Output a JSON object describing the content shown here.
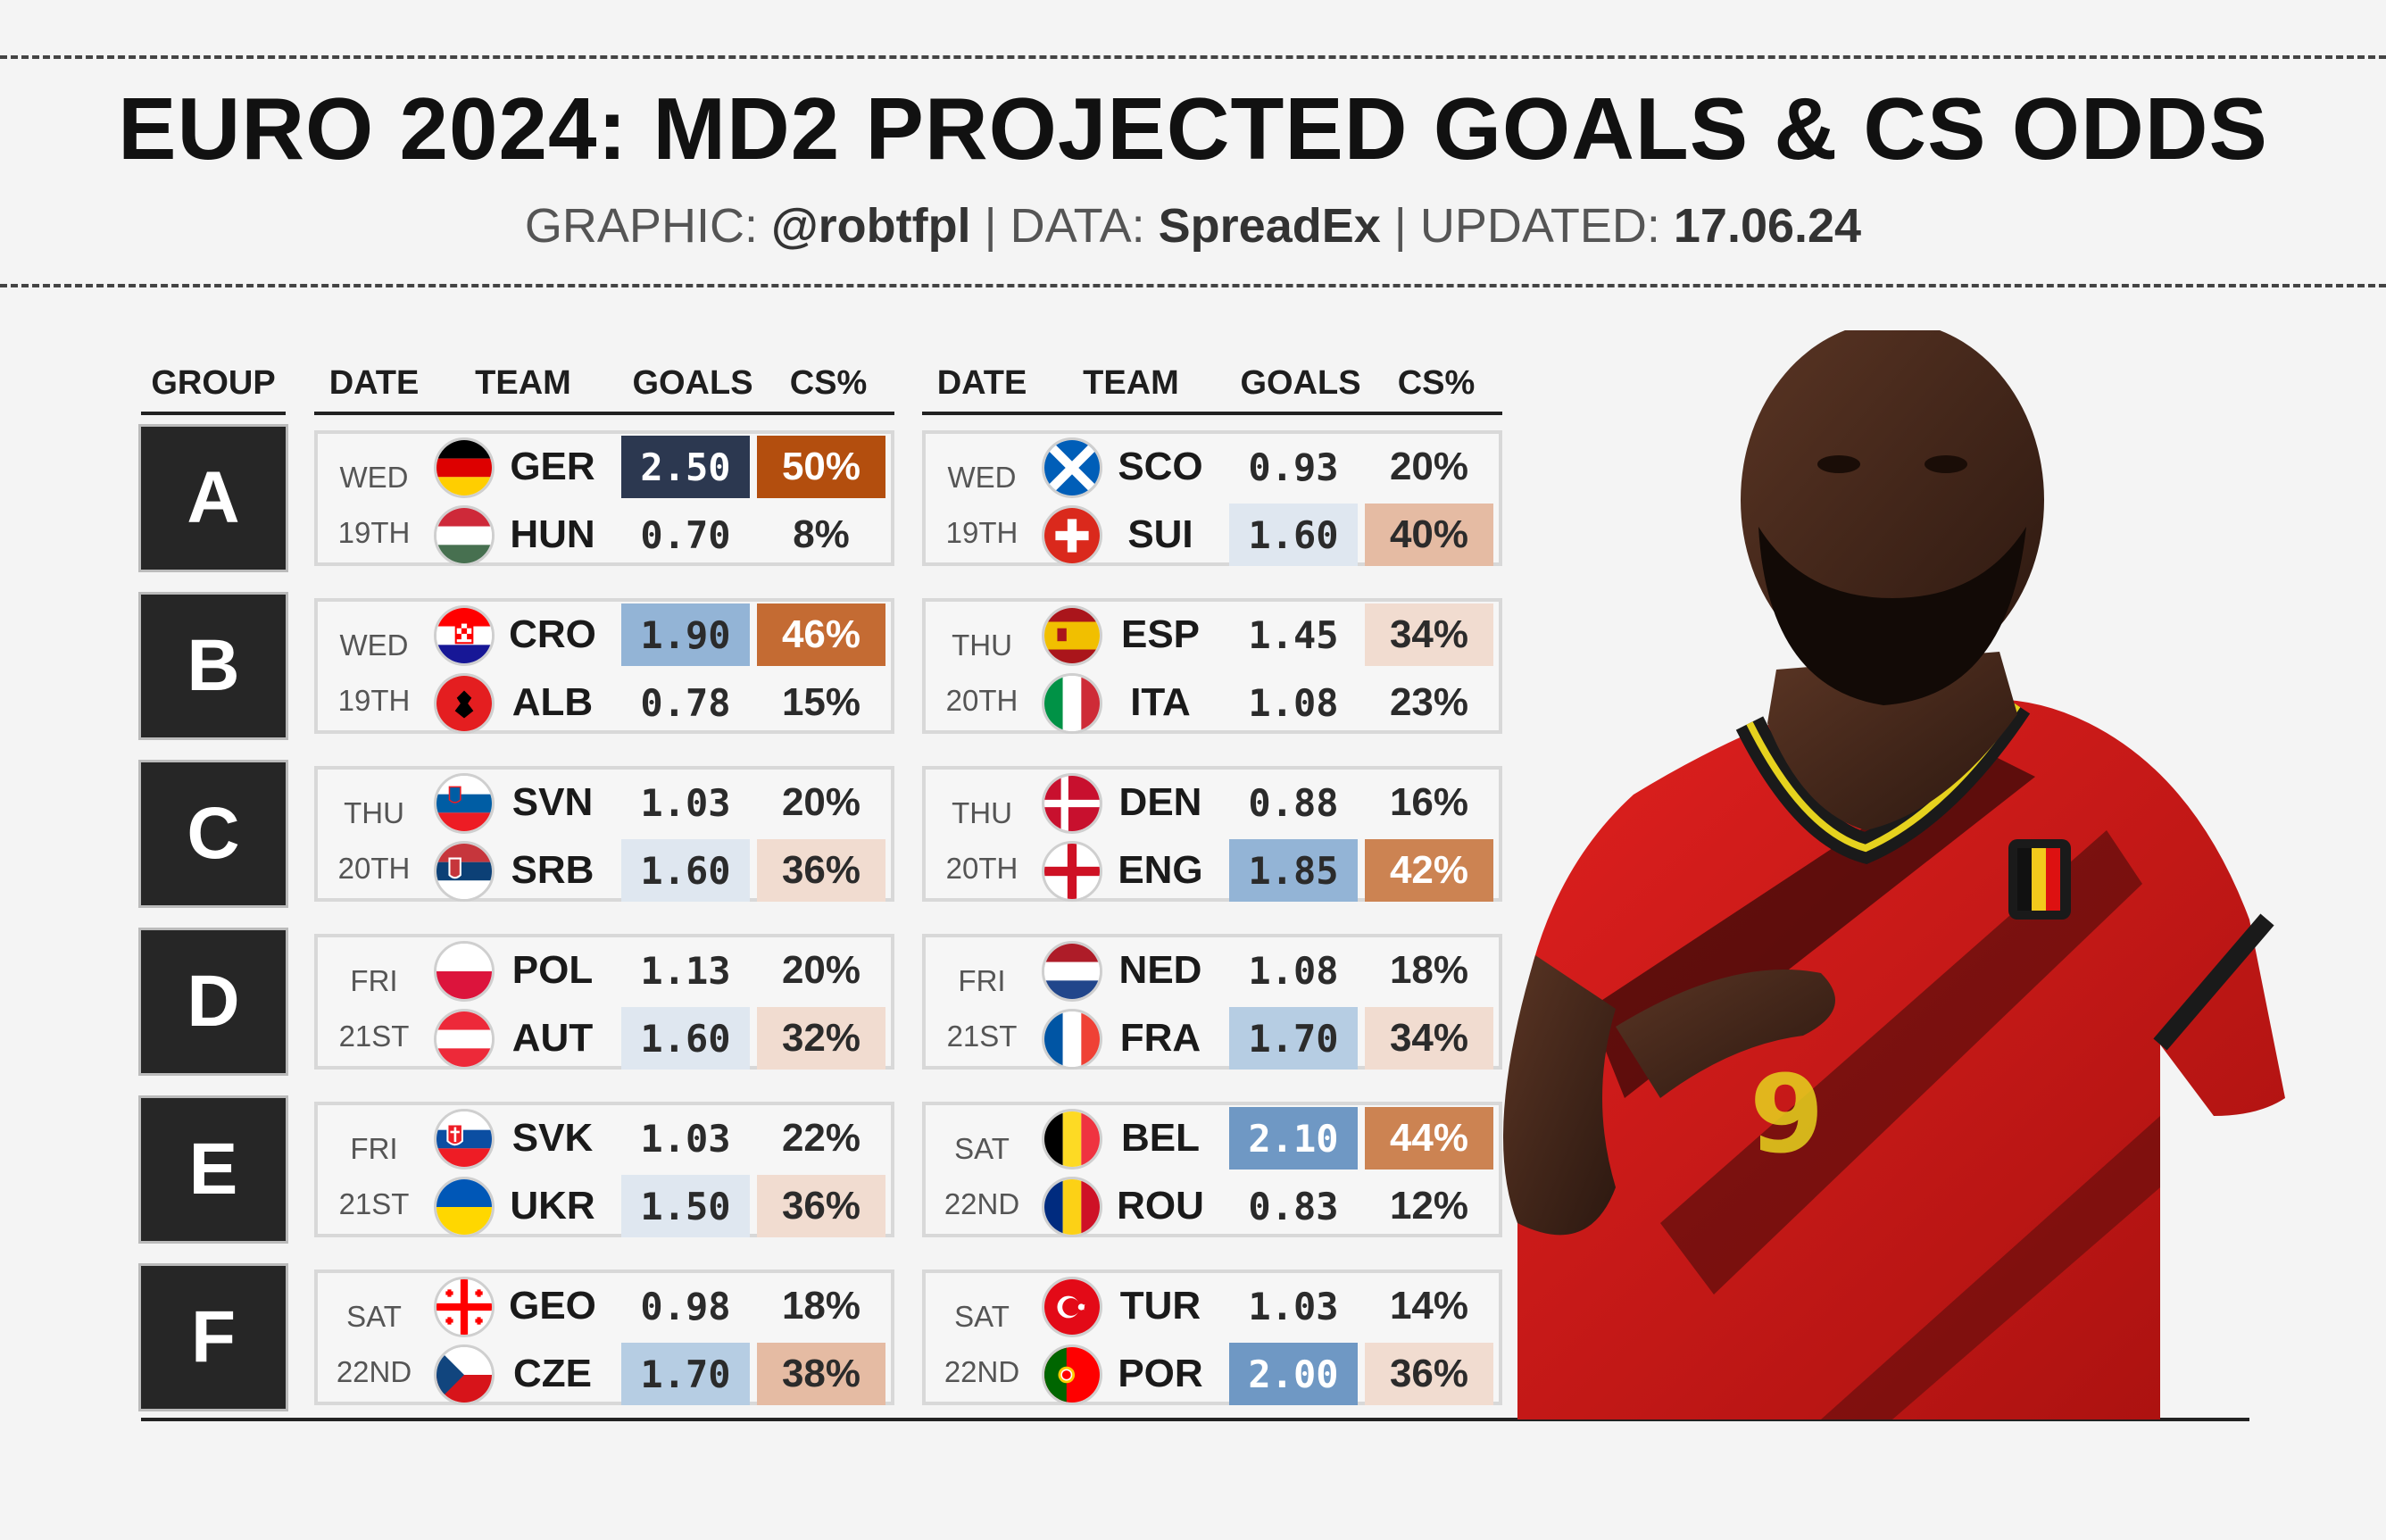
{
  "title": "EURO 2024: MD2 PROJECTED GOALS & CS ODDS",
  "subtitle": {
    "graphic_label": "GRAPHIC:",
    "graphic_value": "@robtfpl",
    "data_label": "DATA:",
    "data_value": "SpreadEx",
    "updated_label": "UPDATED:",
    "updated_value": "17.06.24",
    "separator": "|"
  },
  "headers": {
    "group": "GROUP",
    "date": "DATE",
    "team": "TEAM",
    "goals": "GOALS",
    "cs": "CS%"
  },
  "colors": {
    "goals_scale": [
      "#eceff3",
      "#dfe7f0",
      "#b6cde3",
      "#93b4d6",
      "#6f98c4",
      "#2c3850"
    ],
    "cs_scale": [
      "#f1dcd0",
      "#e5bba3",
      "#cc8352",
      "#c46b33",
      "#b34e0e"
    ],
    "goals_dark": "#2c3850",
    "cs_dark": "#b34e0e"
  },
  "chart_data": {
    "type": "table",
    "columns": [
      "GROUP",
      "DATE",
      "TEAM",
      "GOALS",
      "CS%"
    ],
    "groups": [
      {
        "group": "A",
        "matches": [
          {
            "day": "WED",
            "date": "19TH",
            "teams": [
              {
                "team": "GER",
                "flag": "germany-flag-icon",
                "goals": "2.50",
                "cs": "50%"
              },
              {
                "team": "HUN",
                "flag": "hungary-flag-icon",
                "goals": "0.70",
                "cs": "8%"
              }
            ]
          },
          {
            "day": "WED",
            "date": "19TH",
            "teams": [
              {
                "team": "SCO",
                "flag": "scotland-flag-icon",
                "goals": "0.93",
                "cs": "20%"
              },
              {
                "team": "SUI",
                "flag": "switzerland-flag-icon",
                "goals": "1.60",
                "cs": "40%"
              }
            ]
          }
        ]
      },
      {
        "group": "B",
        "matches": [
          {
            "day": "WED",
            "date": "19TH",
            "teams": [
              {
                "team": "CRO",
                "flag": "croatia-flag-icon",
                "goals": "1.90",
                "cs": "46%"
              },
              {
                "team": "ALB",
                "flag": "albania-flag-icon",
                "goals": "0.78",
                "cs": "15%"
              }
            ]
          },
          {
            "day": "THU",
            "date": "20TH",
            "teams": [
              {
                "team": "ESP",
                "flag": "spain-flag-icon",
                "goals": "1.45",
                "cs": "34%"
              },
              {
                "team": "ITA",
                "flag": "italy-flag-icon",
                "goals": "1.08",
                "cs": "23%"
              }
            ]
          }
        ]
      },
      {
        "group": "C",
        "matches": [
          {
            "day": "THU",
            "date": "20TH",
            "teams": [
              {
                "team": "SVN",
                "flag": "slovenia-flag-icon",
                "goals": "1.03",
                "cs": "20%"
              },
              {
                "team": "SRB",
                "flag": "serbia-flag-icon",
                "goals": "1.60",
                "cs": "36%"
              }
            ]
          },
          {
            "day": "THU",
            "date": "20TH",
            "teams": [
              {
                "team": "DEN",
                "flag": "denmark-flag-icon",
                "goals": "0.88",
                "cs": "16%"
              },
              {
                "team": "ENG",
                "flag": "england-flag-icon",
                "goals": "1.85",
                "cs": "42%"
              }
            ]
          }
        ]
      },
      {
        "group": "D",
        "matches": [
          {
            "day": "FRI",
            "date": "21ST",
            "teams": [
              {
                "team": "POL",
                "flag": "poland-flag-icon",
                "goals": "1.13",
                "cs": "20%"
              },
              {
                "team": "AUT",
                "flag": "austria-flag-icon",
                "goals": "1.60",
                "cs": "32%"
              }
            ]
          },
          {
            "day": "FRI",
            "date": "21ST",
            "teams": [
              {
                "team": "NED",
                "flag": "netherlands-flag-icon",
                "goals": "1.08",
                "cs": "18%"
              },
              {
                "team": "FRA",
                "flag": "france-flag-icon",
                "goals": "1.70",
                "cs": "34%"
              }
            ]
          }
        ]
      },
      {
        "group": "E",
        "matches": [
          {
            "day": "FRI",
            "date": "21ST",
            "teams": [
              {
                "team": "SVK",
                "flag": "slovakia-flag-icon",
                "goals": "1.03",
                "cs": "22%"
              },
              {
                "team": "UKR",
                "flag": "ukraine-flag-icon",
                "goals": "1.50",
                "cs": "36%"
              }
            ]
          },
          {
            "day": "SAT",
            "date": "22ND",
            "teams": [
              {
                "team": "BEL",
                "flag": "belgium-flag-icon",
                "goals": "2.10",
                "cs": "44%"
              },
              {
                "team": "ROU",
                "flag": "romania-flag-icon",
                "goals": "0.83",
                "cs": "12%"
              }
            ]
          }
        ]
      },
      {
        "group": "F",
        "matches": [
          {
            "day": "SAT",
            "date": "22ND",
            "teams": [
              {
                "team": "GEO",
                "flag": "georgia-flag-icon",
                "goals": "0.98",
                "cs": "18%"
              },
              {
                "team": "CZE",
                "flag": "czechia-flag-icon",
                "goals": "1.70",
                "cs": "38%"
              }
            ]
          },
          {
            "day": "SAT",
            "date": "22ND",
            "teams": [
              {
                "team": "TUR",
                "flag": "turkey-flag-icon",
                "goals": "1.03",
                "cs": "14%"
              },
              {
                "team": "POR",
                "flag": "portugal-flag-icon",
                "goals": "2.00",
                "cs": "36%"
              }
            ]
          }
        ]
      }
    ]
  },
  "player_image": "belgium-player-photo"
}
